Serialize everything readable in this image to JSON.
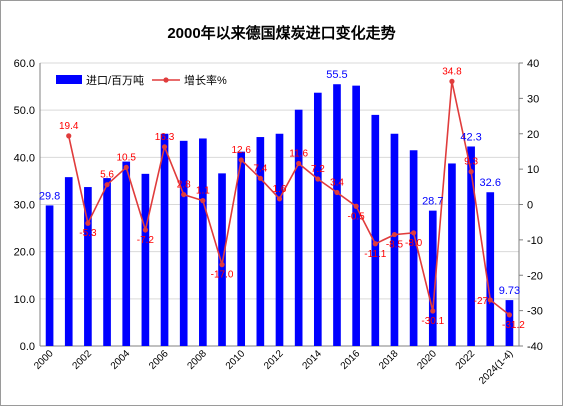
{
  "chart_data": {
    "type": "bar",
    "title": "2000年以来德国煤炭进口变化走势",
    "categories": [
      "2000",
      "2001",
      "2002",
      "2003",
      "2004",
      "2005",
      "2006",
      "2007",
      "2008",
      "2009",
      "2010",
      "2011",
      "2012",
      "2013",
      "2014",
      "2015",
      "2016",
      "2017",
      "2018",
      "2019",
      "2020",
      "2021",
      "2022",
      "2023",
      "2024(1-4)"
    ],
    "x_tick_labels": [
      "2000",
      "2002",
      "2004",
      "2006",
      "2008",
      "2010",
      "2012",
      "2014",
      "2016",
      "2018",
      "2020",
      "2022",
      "2024(1-4)"
    ],
    "series": [
      {
        "name": "进口/百万吨",
        "type": "bar",
        "axis": "left",
        "color": "#0000ff",
        "values": [
          29.8,
          35.8,
          33.7,
          35.6,
          39.1,
          36.5,
          45.0,
          43.5,
          44.0,
          36.6,
          41.2,
          44.3,
          45.0,
          50.1,
          53.7,
          55.5,
          55.2,
          49.0,
          45.0,
          41.5,
          28.7,
          38.7,
          42.3,
          32.6,
          9.73
        ],
        "data_labels": {
          "0": "29.8",
          "15": "55.5",
          "20": "28.7",
          "22": "42.3",
          "23": "32.6",
          "24": "9.73"
        }
      },
      {
        "name": "增长率%",
        "type": "line",
        "axis": "right",
        "color": "#e03c3c",
        "values": [
          null,
          19.4,
          -5.3,
          5.6,
          10.5,
          -7.2,
          16.3,
          2.8,
          1.1,
          -17.0,
          12.6,
          7.4,
          1.6,
          11.6,
          7.2,
          3.4,
          -0.5,
          -11.1,
          -8.5,
          -8.0,
          -30.1,
          34.8,
          9.3,
          -27.0,
          -31.2
        ],
        "data_labels": [
          "",
          "19.4",
          "-5.3",
          "5.6",
          "10.5",
          "-7.2",
          "16.3",
          "2.8",
          "1.1",
          "-17.0",
          "12.6",
          "7.4",
          "1.6",
          "11.6",
          "7.2",
          "3.4",
          "-0.5",
          "-11.1",
          "-8.5",
          "-8.0",
          "-30.1",
          "34.8",
          "9.3",
          "-27.",
          "-31.2"
        ]
      }
    ],
    "y_left": {
      "min": 0,
      "max": 60,
      "step": 10,
      "tick_labels": [
        "0.0",
        "10.0",
        "20.0",
        "30.0",
        "40.0",
        "50.0",
        "60.0"
      ]
    },
    "y_right": {
      "min": -40,
      "max": 40,
      "step": 10,
      "tick_labels": [
        "-40",
        "-30",
        "-20",
        "-10",
        "0",
        "10",
        "20",
        "30",
        "40"
      ]
    },
    "grid": true,
    "legend_position": "top-left",
    "colors": {
      "bar": "#0000ff",
      "line": "#e03c3c",
      "bar_label": "#0000ff",
      "line_label": "#ff0000",
      "grid": "#d9d9d9"
    }
  }
}
